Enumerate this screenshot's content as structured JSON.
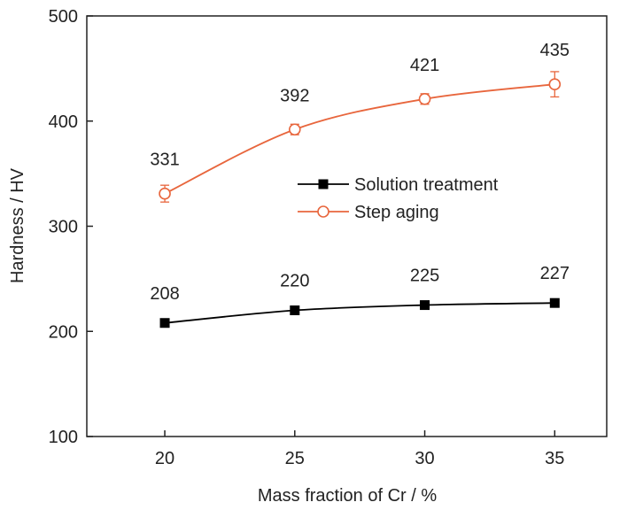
{
  "chart_data": {
    "type": "line",
    "xlabel": "Mass fraction of Cr / %",
    "ylabel": "Hardness / HV",
    "xlim": [
      17,
      37
    ],
    "ylim": [
      100,
      500
    ],
    "x_ticks": [
      20,
      25,
      30,
      35
    ],
    "y_ticks": [
      100,
      200,
      300,
      400,
      500
    ],
    "grid": false,
    "legend_position": "center-right",
    "series": [
      {
        "name": "Solution treatment",
        "color": "#000000",
        "marker": "filled-square",
        "x": [
          20,
          25,
          30,
          35
        ],
        "values": [
          208,
          220,
          225,
          227
        ],
        "labels": [
          "208",
          "220",
          "225",
          "227"
        ]
      },
      {
        "name": "Step aging",
        "color": "#e8663d",
        "marker": "open-circle",
        "x": [
          20,
          25,
          30,
          35
        ],
        "values": [
          331,
          392,
          421,
          435
        ],
        "labels": [
          "331",
          "392",
          "421",
          "435"
        ],
        "error": [
          8,
          5,
          5,
          12
        ]
      }
    ]
  }
}
